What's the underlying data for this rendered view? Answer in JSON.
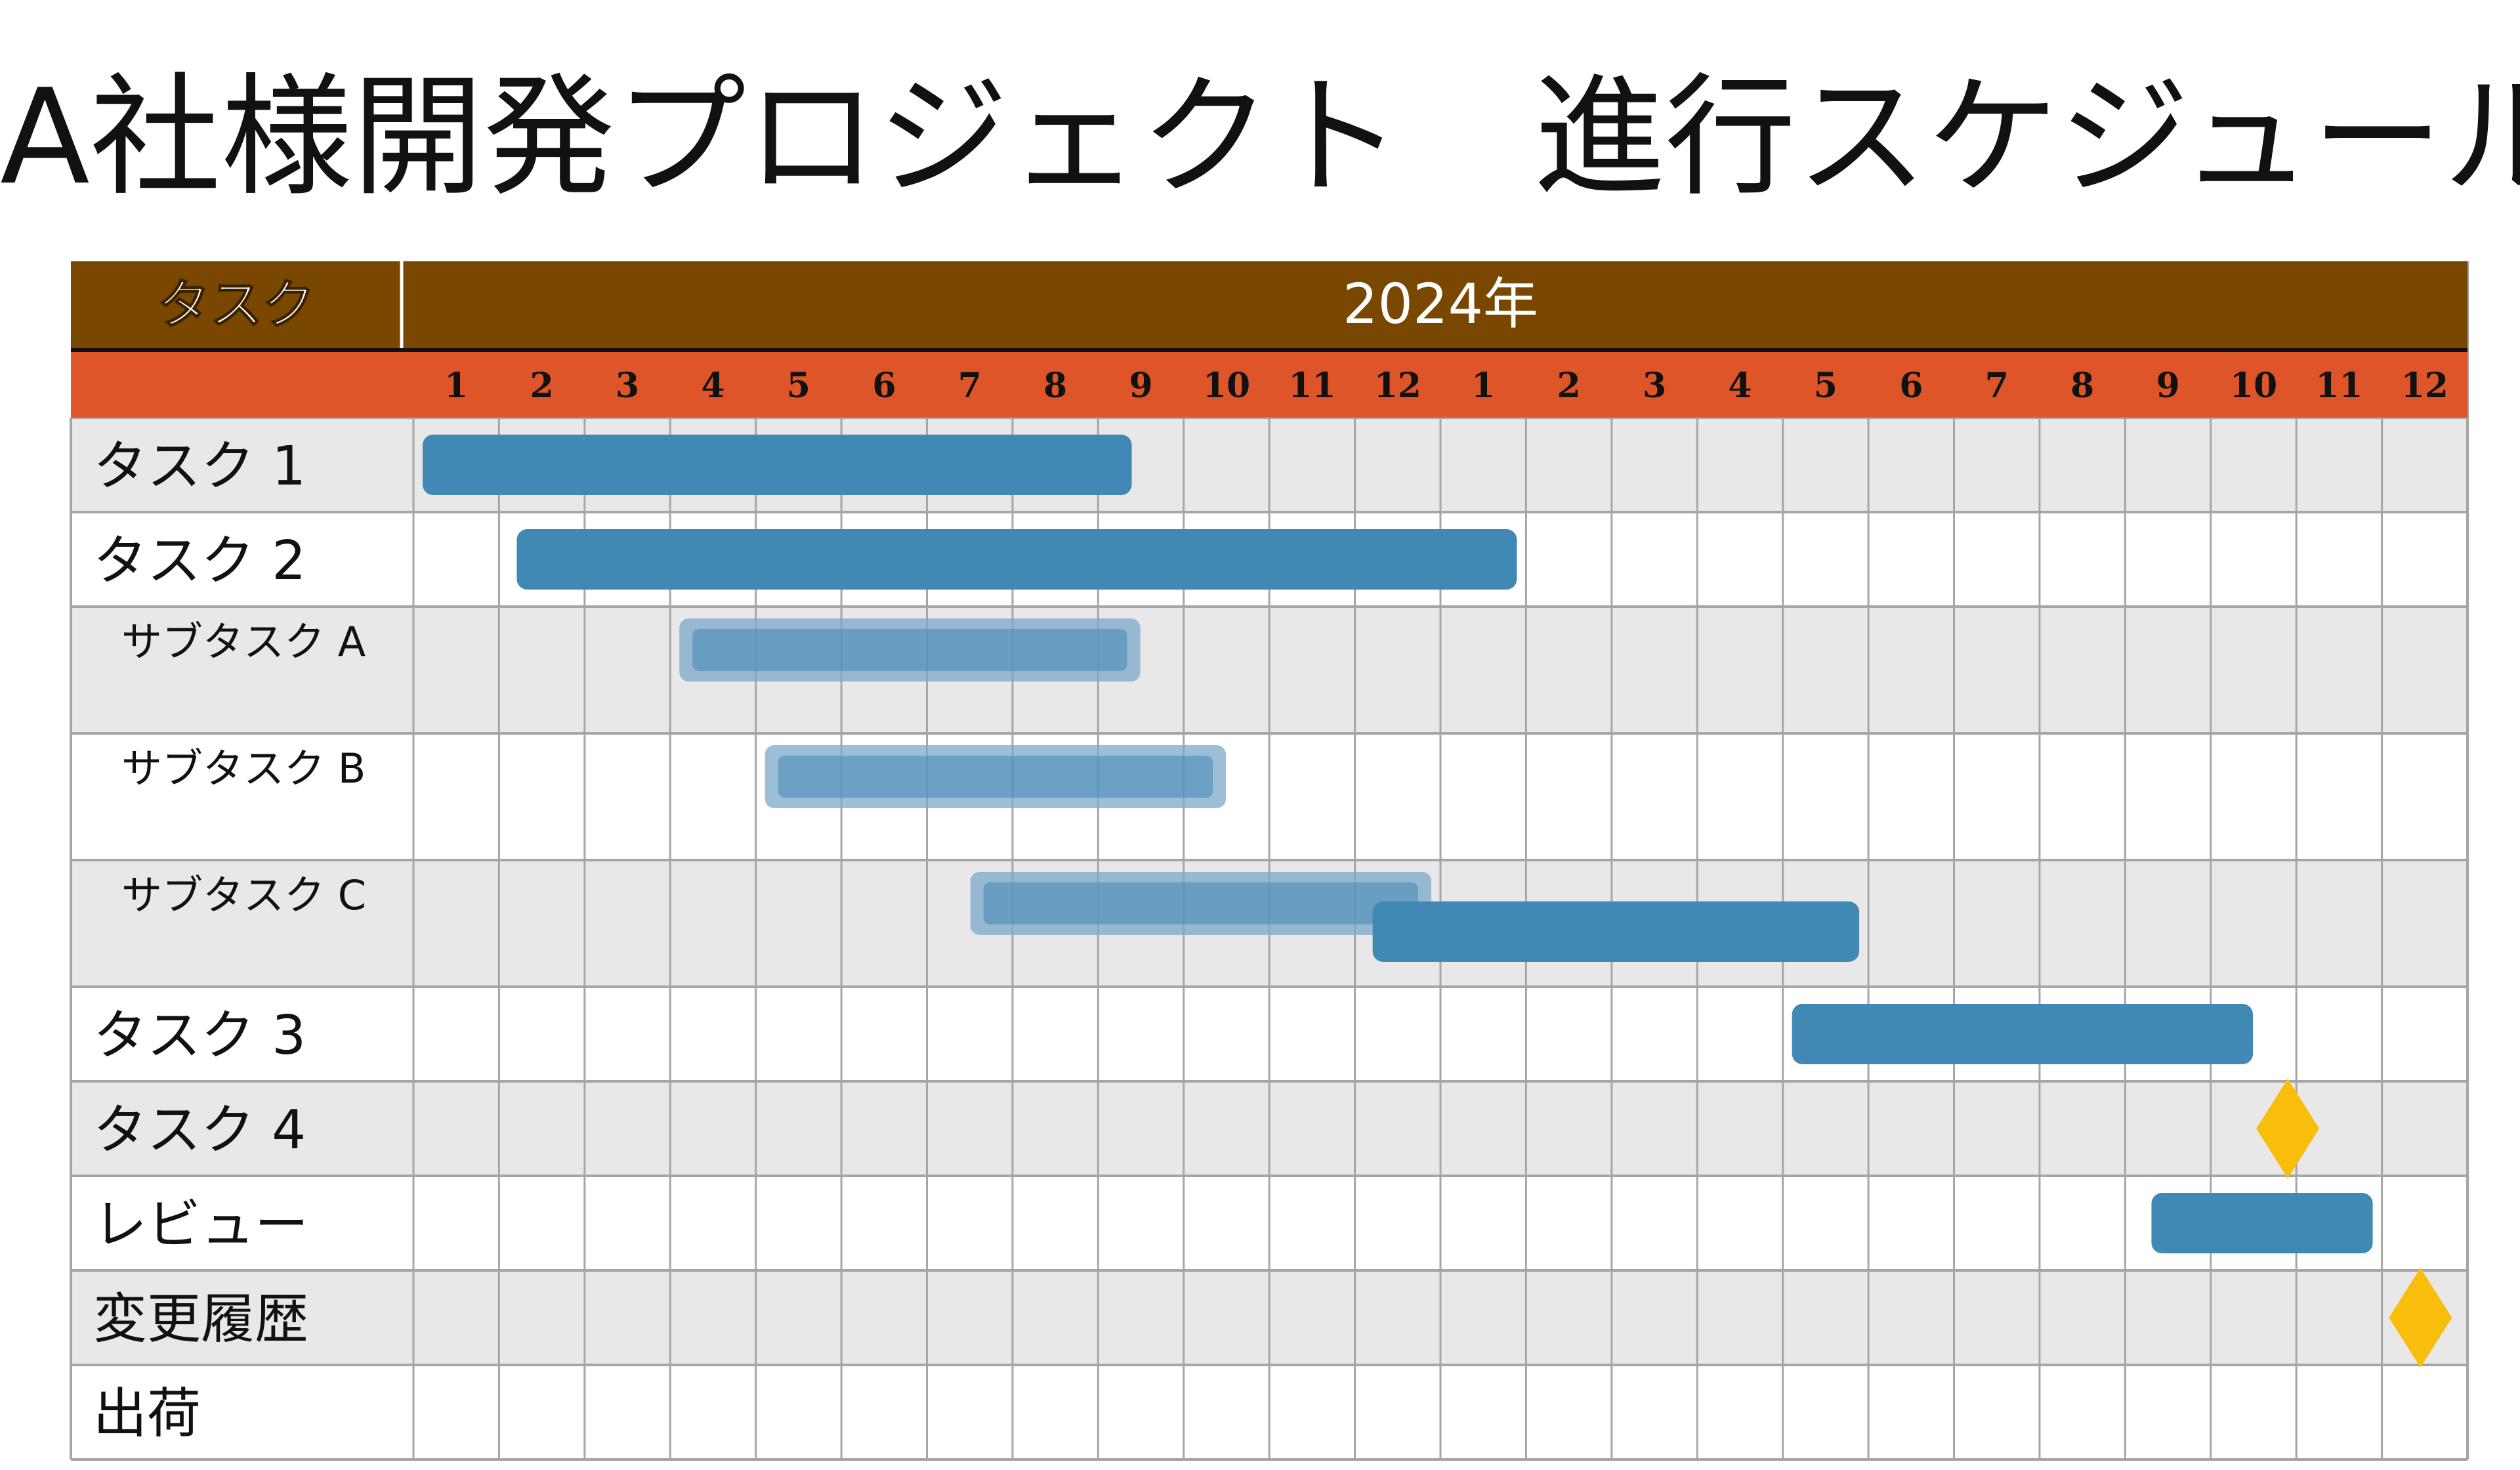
{
  "title": "A社様開発プロジェクト　進行スケジュール",
  "header": {
    "task_column": "タスク",
    "year": "2024年"
  },
  "colors": {
    "header_bg": "#7a4700",
    "month_bar_bg": "#df552a",
    "bar": "#4189b5",
    "sub_bar": "#7ba9ca",
    "milestone": "#f8be0b",
    "row_odd": "#e8e8e8",
    "row_even": "#ffffff",
    "grid": "#a6a6a6"
  },
  "chart_data": {
    "type": "gantt",
    "months": [
      "1",
      "2",
      "3",
      "4",
      "5",
      "6",
      "7",
      "8",
      "9",
      "10",
      "11",
      "12",
      "1",
      "2",
      "3",
      "4",
      "5",
      "6",
      "7",
      "8",
      "9",
      "10",
      "11",
      "12"
    ],
    "rows": [
      {
        "label": "タスク 1",
        "level": 0,
        "tall": false
      },
      {
        "label": "タスク 2",
        "level": 0,
        "tall": false
      },
      {
        "label": "サブタスク A",
        "level": 1,
        "tall": true
      },
      {
        "label": "サブタスク B",
        "level": 1,
        "tall": true
      },
      {
        "label": "サブタスク C",
        "level": 1,
        "tall": true
      },
      {
        "label": "タスク 3",
        "level": 0,
        "tall": false
      },
      {
        "label": "タスク 4",
        "level": 0,
        "tall": false
      },
      {
        "label": "レビュー",
        "level": 0,
        "tall": false
      },
      {
        "label": "変更履歴",
        "level": 0,
        "tall": false
      },
      {
        "label": "出荷",
        "level": 0,
        "tall": false
      }
    ],
    "bars": [
      {
        "row": 0,
        "start": 0.0,
        "end": 8.5,
        "style": "solid"
      },
      {
        "row": 1,
        "start": 1.1,
        "end": 13.0,
        "style": "solid"
      },
      {
        "row": 2,
        "start": 3.0,
        "end": 8.6,
        "style": "sub"
      },
      {
        "row": 3,
        "start": 4.0,
        "end": 9.6,
        "style": "sub"
      },
      {
        "row": 4,
        "start": 6.4,
        "end": 12.0,
        "style": "sub"
      },
      {
        "row": 4,
        "start": 11.1,
        "end": 17.0,
        "style": "solid",
        "offset": "bottom"
      },
      {
        "row": 5,
        "start": 16.0,
        "end": 21.6,
        "style": "solid"
      },
      {
        "row": 7,
        "start": 20.2,
        "end": 23.0,
        "style": "solid"
      }
    ],
    "milestones": [
      {
        "row": 6,
        "at": 21.9
      },
      {
        "row": 8,
        "at": 23.45
      }
    ]
  }
}
